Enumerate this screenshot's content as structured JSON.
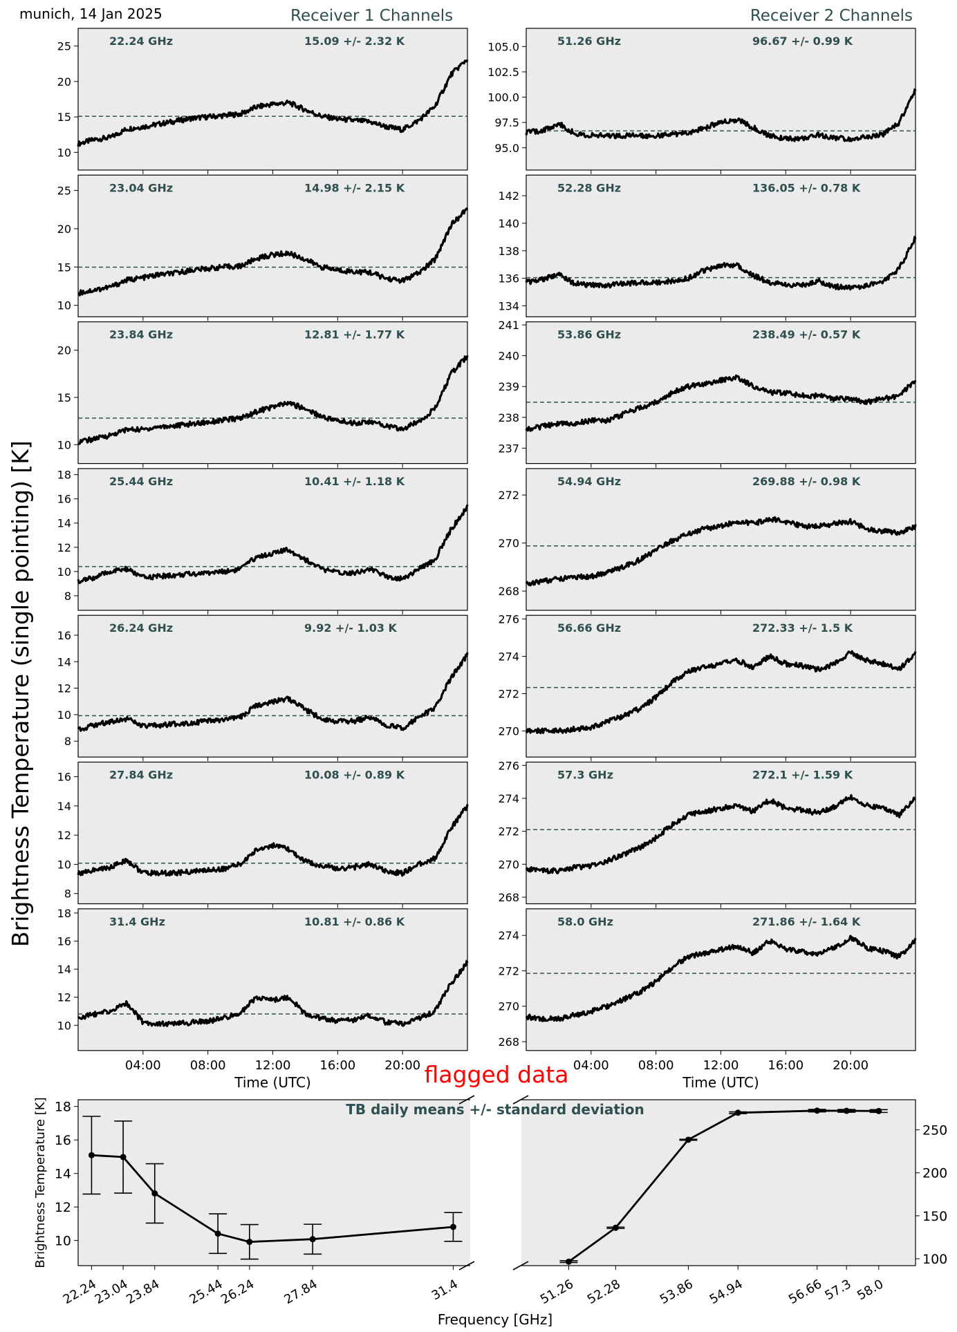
{
  "header": {
    "location_date": "munich, 14 Jan 2025",
    "receiver1_title": "Receiver 1 Channels",
    "receiver2_title": "Receiver 2 Channels",
    "y_axis_label": "Brightness Temperature (single pointing) [K]"
  },
  "colors": {
    "panel_bg": "#ebebeb",
    "trace": "#000000",
    "mean_line": "#2f4f4f",
    "label_text": "#2f4f4f",
    "flag_text": "#ff0000"
  },
  "time_axis": {
    "label": "Time (UTC)",
    "range_hours": [
      0,
      24
    ],
    "ticks": [
      4,
      8,
      12,
      16,
      20
    ],
    "tick_labels": [
      "04:00",
      "08:00",
      "12:00",
      "16:00",
      "20:00"
    ]
  },
  "chart_data": [
    {
      "type": "line",
      "receiver": 1,
      "channel": "22.24 GHz",
      "stat": "15.09 +/- 2.32 K",
      "mean": 15.09,
      "ylim": [
        7.5,
        27.5
      ],
      "yticks": [
        10,
        15,
        20,
        25
      ],
      "ytick_labels": [
        "10",
        "15",
        "20",
        "25"
      ],
      "x_hours": [
        0,
        1,
        2,
        3,
        4,
        5,
        6,
        7,
        8,
        9,
        10,
        11,
        12,
        13,
        14,
        15,
        16,
        17,
        18,
        19,
        20,
        21,
        22,
        23,
        24
      ],
      "y": [
        11.2,
        11.8,
        12.1,
        13.3,
        13.6,
        14.0,
        14.4,
        14.8,
        15.0,
        15.2,
        15.4,
        16.4,
        16.8,
        17.0,
        16.0,
        15.1,
        14.7,
        14.5,
        14.3,
        13.6,
        13.2,
        14.5,
        16.5,
        21.0,
        23.2
      ]
    },
    {
      "type": "line",
      "receiver": 1,
      "channel": "23.04 GHz",
      "stat": "14.98 +/- 2.15 K",
      "mean": 14.98,
      "ylim": [
        8.5,
        27
      ],
      "yticks": [
        10,
        15,
        20,
        25
      ],
      "ytick_labels": [
        "10",
        "15",
        "20",
        "25"
      ],
      "x_hours": [
        0,
        1,
        2,
        3,
        4,
        5,
        6,
        7,
        8,
        9,
        10,
        11,
        12,
        13,
        14,
        15,
        16,
        17,
        18,
        19,
        20,
        21,
        22,
        23,
        24
      ],
      "y": [
        11.6,
        12.0,
        12.4,
        13.3,
        13.6,
        14.0,
        14.2,
        14.6,
        14.8,
        15.0,
        15.1,
        16.1,
        16.6,
        16.8,
        16.0,
        15.0,
        14.6,
        14.4,
        14.3,
        13.5,
        13.2,
        14.2,
        16.0,
        20.5,
        22.6
      ]
    },
    {
      "type": "line",
      "receiver": 1,
      "channel": "23.84 GHz",
      "stat": "12.81 +/- 1.77 K",
      "mean": 12.81,
      "ylim": [
        8,
        23
      ],
      "yticks": [
        10,
        15,
        20
      ],
      "ytick_labels": [
        "10",
        "15",
        "20"
      ],
      "x_hours": [
        0,
        1,
        2,
        3,
        4,
        5,
        6,
        7,
        8,
        9,
        10,
        11,
        12,
        13,
        14,
        15,
        16,
        17,
        18,
        19,
        20,
        21,
        22,
        23,
        24
      ],
      "y": [
        10.3,
        10.6,
        11.0,
        11.6,
        11.6,
        11.9,
        12.0,
        12.2,
        12.4,
        12.6,
        12.8,
        13.5,
        14.0,
        14.4,
        13.8,
        13.0,
        12.5,
        12.3,
        12.4,
        12.0,
        11.6,
        12.5,
        13.8,
        17.5,
        19.4
      ]
    },
    {
      "type": "line",
      "receiver": 1,
      "channel": "25.44 GHz",
      "stat": "10.41 +/- 1.18 K",
      "mean": 10.41,
      "ylim": [
        6.8,
        18.5
      ],
      "yticks": [
        8,
        10,
        12,
        14,
        16,
        18
      ],
      "ytick_labels": [
        "8",
        "10",
        "12",
        "14",
        "16",
        "18"
      ],
      "x_hours": [
        0,
        1,
        2,
        3,
        4,
        5,
        6,
        7,
        8,
        9,
        10,
        11,
        12,
        13,
        14,
        15,
        16,
        17,
        18,
        19,
        20,
        21,
        22,
        23,
        24
      ],
      "y": [
        9.2,
        9.5,
        10.0,
        10.2,
        9.5,
        9.6,
        9.7,
        9.8,
        9.9,
        10.0,
        10.2,
        11.2,
        11.5,
        11.8,
        11.0,
        10.2,
        9.9,
        9.9,
        10.2,
        9.6,
        9.4,
        10.2,
        11.0,
        13.5,
        15.3
      ]
    },
    {
      "type": "line",
      "receiver": 1,
      "channel": "26.24 GHz",
      "stat": "9.92 +/- 1.03 K",
      "mean": 9.92,
      "ylim": [
        6.8,
        17.5
      ],
      "yticks": [
        8,
        10,
        12,
        14,
        16
      ],
      "ytick_labels": [
        "8",
        "10",
        "12",
        "14",
        "16"
      ],
      "x_hours": [
        0,
        1,
        2,
        3,
        4,
        5,
        6,
        7,
        8,
        9,
        10,
        11,
        12,
        13,
        14,
        15,
        16,
        17,
        18,
        19,
        20,
        21,
        22,
        23,
        24
      ],
      "y": [
        8.9,
        9.2,
        9.5,
        9.7,
        9.1,
        9.2,
        9.3,
        9.4,
        9.5,
        9.6,
        9.8,
        10.7,
        11.0,
        11.2,
        10.4,
        9.7,
        9.5,
        9.5,
        9.8,
        9.2,
        9.0,
        9.8,
        10.5,
        12.8,
        14.5
      ]
    },
    {
      "type": "line",
      "receiver": 1,
      "channel": "27.84 GHz",
      "stat": "10.08 +/- 0.89 K",
      "mean": 10.08,
      "ylim": [
        7.3,
        17
      ],
      "yticks": [
        8,
        10,
        12,
        14,
        16
      ],
      "ytick_labels": [
        "8",
        "10",
        "12",
        "14",
        "16"
      ],
      "x_hours": [
        0,
        1,
        2,
        3,
        4,
        5,
        6,
        7,
        8,
        9,
        10,
        11,
        12,
        13,
        14,
        15,
        16,
        17,
        18,
        19,
        20,
        21,
        22,
        23,
        24
      ],
      "y": [
        9.4,
        9.6,
        9.8,
        10.3,
        9.4,
        9.4,
        9.4,
        9.5,
        9.6,
        9.7,
        10.0,
        11.0,
        11.3,
        11.0,
        10.2,
        9.9,
        9.7,
        9.8,
        10.0,
        9.5,
        9.4,
        10.0,
        10.4,
        12.5,
        14.0
      ]
    },
    {
      "type": "line",
      "receiver": 1,
      "channel": "31.4 GHz",
      "stat": "10.81 +/- 0.86 K",
      "mean": 10.81,
      "ylim": [
        8.2,
        18.3
      ],
      "yticks": [
        10,
        12,
        14,
        16,
        18
      ],
      "ytick_labels": [
        "10",
        "12",
        "14",
        "16",
        "18"
      ],
      "x_hours": [
        0,
        1,
        2,
        3,
        4,
        5,
        6,
        7,
        8,
        9,
        10,
        11,
        12,
        13,
        14,
        15,
        16,
        17,
        18,
        19,
        20,
        21,
        22,
        23,
        24
      ],
      "y": [
        10.5,
        10.8,
        11.0,
        11.6,
        10.2,
        10.1,
        10.1,
        10.2,
        10.3,
        10.5,
        10.9,
        12.0,
        11.8,
        12.0,
        10.8,
        10.5,
        10.3,
        10.4,
        10.7,
        10.2,
        10.1,
        10.5,
        11.0,
        13.0,
        14.5
      ]
    },
    {
      "type": "line",
      "receiver": 2,
      "channel": "51.26 GHz",
      "stat": "96.67 +/- 0.99 K",
      "mean": 96.67,
      "ylim": [
        92.8,
        106.8
      ],
      "yticks": [
        95.0,
        97.5,
        100.0,
        102.5,
        105.0
      ],
      "ytick_labels": [
        "95.0",
        "97.5",
        "100.0",
        "102.5",
        "105.0"
      ],
      "x_hours": [
        0,
        1,
        2,
        3,
        4,
        5,
        6,
        7,
        8,
        9,
        10,
        11,
        12,
        13,
        14,
        15,
        16,
        17,
        18,
        19,
        20,
        21,
        22,
        23,
        24
      ],
      "y": [
        96.5,
        96.7,
        97.4,
        96.4,
        96.2,
        96.2,
        96.2,
        96.2,
        96.2,
        96.3,
        96.5,
        97.0,
        97.5,
        97.8,
        97.0,
        96.2,
        95.9,
        95.9,
        96.3,
        96.0,
        95.8,
        96.1,
        96.3,
        97.5,
        100.8
      ]
    },
    {
      "type": "line",
      "receiver": 2,
      "channel": "52.28 GHz",
      "stat": "136.05 +/- 0.78 K",
      "mean": 136.05,
      "ylim": [
        133.2,
        143.5
      ],
      "yticks": [
        134,
        136,
        138,
        140,
        142
      ],
      "ytick_labels": [
        "134",
        "136",
        "138",
        "140",
        "142"
      ],
      "x_hours": [
        0,
        1,
        2,
        3,
        4,
        5,
        6,
        7,
        8,
        9,
        10,
        11,
        12,
        13,
        14,
        15,
        16,
        17,
        18,
        19,
        20,
        21,
        22,
        23,
        24
      ],
      "y": [
        135.7,
        135.9,
        136.3,
        135.6,
        135.5,
        135.5,
        135.6,
        135.7,
        135.7,
        135.8,
        136.0,
        136.6,
        136.9,
        137.0,
        136.2,
        135.7,
        135.5,
        135.5,
        135.8,
        135.4,
        135.3,
        135.5,
        135.8,
        136.7,
        139.0
      ]
    },
    {
      "type": "line",
      "receiver": 2,
      "channel": "53.86 GHz",
      "stat": "238.49 +/- 0.57 K",
      "mean": 238.49,
      "ylim": [
        236.5,
        241.1
      ],
      "yticks": [
        237,
        238,
        239,
        240,
        241
      ],
      "ytick_labels": [
        "237",
        "238",
        "239",
        "240",
        "241"
      ],
      "x_hours": [
        0,
        1,
        2,
        3,
        4,
        5,
        6,
        7,
        8,
        9,
        10,
        11,
        12,
        13,
        14,
        15,
        16,
        17,
        18,
        19,
        20,
        21,
        22,
        23,
        24
      ],
      "y": [
        237.6,
        237.7,
        237.8,
        237.8,
        237.9,
        237.9,
        238.1,
        238.3,
        238.5,
        238.8,
        239.0,
        239.1,
        239.2,
        239.3,
        239.0,
        238.8,
        238.8,
        238.7,
        238.7,
        238.6,
        238.6,
        238.5,
        238.6,
        238.7,
        239.2
      ]
    },
    {
      "type": "line",
      "receiver": 2,
      "channel": "54.94 GHz",
      "stat": "269.88 +/- 0.98 K",
      "mean": 269.88,
      "ylim": [
        267.2,
        273.1
      ],
      "yticks": [
        268,
        270,
        272
      ],
      "ytick_labels": [
        "268",
        "270",
        "272"
      ],
      "x_hours": [
        0,
        1,
        2,
        3,
        4,
        5,
        6,
        7,
        8,
        9,
        10,
        11,
        12,
        13,
        14,
        15,
        16,
        17,
        18,
        19,
        20,
        21,
        22,
        23,
        24
      ],
      "y": [
        268.3,
        268.4,
        268.5,
        268.6,
        268.6,
        268.8,
        269.0,
        269.3,
        269.7,
        270.1,
        270.4,
        270.6,
        270.7,
        270.9,
        270.8,
        271.0,
        270.9,
        270.7,
        270.7,
        270.8,
        270.9,
        270.6,
        270.5,
        270.4,
        270.7
      ]
    },
    {
      "type": "line",
      "receiver": 2,
      "channel": "56.66 GHz",
      "stat": "272.33 +/- 1.5 K",
      "mean": 272.33,
      "ylim": [
        268.6,
        276.2
      ],
      "yticks": [
        270,
        272,
        274,
        276
      ],
      "ytick_labels": [
        "270",
        "272",
        "274",
        "276"
      ],
      "x_hours": [
        0,
        1,
        2,
        3,
        4,
        5,
        6,
        7,
        8,
        9,
        10,
        11,
        12,
        13,
        14,
        15,
        16,
        17,
        18,
        19,
        20,
        21,
        22,
        23,
        24
      ],
      "y": [
        270.0,
        270.0,
        270.0,
        270.1,
        270.2,
        270.5,
        270.8,
        271.2,
        271.8,
        272.6,
        273.2,
        273.4,
        273.6,
        273.8,
        273.4,
        274.0,
        273.6,
        273.5,
        273.3,
        273.6,
        274.2,
        273.8,
        273.6,
        273.3,
        274.2
      ]
    },
    {
      "type": "line",
      "receiver": 2,
      "channel": "57.3 GHz",
      "stat": "272.1 +/- 1.59 K",
      "mean": 272.1,
      "ylim": [
        267.6,
        276.2
      ],
      "yticks": [
        268,
        270,
        272,
        274,
        276
      ],
      "ytick_labels": [
        "268",
        "270",
        "272",
        "274",
        "276"
      ],
      "x_hours": [
        0,
        1,
        2,
        3,
        4,
        5,
        6,
        7,
        8,
        9,
        10,
        11,
        12,
        13,
        14,
        15,
        16,
        17,
        18,
        19,
        20,
        21,
        22,
        23,
        24
      ],
      "y": [
        269.7,
        269.6,
        269.6,
        269.8,
        269.9,
        270.2,
        270.6,
        271.0,
        271.6,
        272.4,
        273.0,
        273.2,
        273.4,
        273.6,
        273.2,
        273.9,
        273.4,
        273.3,
        273.1,
        273.5,
        274.1,
        273.6,
        273.4,
        273.0,
        274.0
      ]
    },
    {
      "type": "line",
      "receiver": 2,
      "channel": "58.0 GHz",
      "stat": "271.86 +/- 1.64 K",
      "mean": 271.86,
      "ylim": [
        267.5,
        275.5
      ],
      "yticks": [
        268,
        270,
        272,
        274
      ],
      "ytick_labels": [
        "268",
        "270",
        "272",
        "274"
      ],
      "x_hours": [
        0,
        1,
        2,
        3,
        4,
        5,
        6,
        7,
        8,
        9,
        10,
        11,
        12,
        13,
        14,
        15,
        16,
        17,
        18,
        19,
        20,
        21,
        22,
        23,
        24
      ],
      "y": [
        269.4,
        269.3,
        269.3,
        269.5,
        269.7,
        270.0,
        270.4,
        270.8,
        271.4,
        272.2,
        272.8,
        273.0,
        273.2,
        273.4,
        273.0,
        273.7,
        273.2,
        273.1,
        272.9,
        273.3,
        273.9,
        273.3,
        273.1,
        272.8,
        273.7
      ]
    },
    {
      "type": "line",
      "title": "TB daily means +/- standard deviation",
      "xlabel": "Frequency [GHz]",
      "ylabel": "Brightness Temperature [K]",
      "annotation": "flagged data",
      "categories": [
        "22.24",
        "23.04",
        "23.84",
        "25.44",
        "26.24",
        "27.84",
        "31.4",
        "51.26",
        "52.28",
        "53.86",
        "54.94",
        "56.66",
        "57.3",
        "58.0"
      ],
      "series": [
        {
          "axis": "left",
          "x": [
            22.24,
            23.04,
            23.84,
            25.44,
            26.24,
            27.84,
            31.4
          ],
          "mean": [
            15.09,
            14.98,
            12.81,
            10.41,
            9.92,
            10.08,
            10.81
          ],
          "std": [
            2.32,
            2.15,
            1.77,
            1.18,
            1.03,
            0.89,
            0.86
          ],
          "ylim": [
            8.5,
            18.4
          ],
          "yticks": [
            10,
            12,
            14,
            16,
            18
          ],
          "ytick_labels": [
            "10",
            "12",
            "14",
            "16",
            "18"
          ]
        },
        {
          "axis": "right",
          "x": [
            51.26,
            52.28,
            53.86,
            54.94,
            56.66,
            57.3,
            58.0
          ],
          "mean": [
            96.67,
            136.05,
            238.49,
            269.88,
            272.33,
            272.1,
            271.86
          ],
          "std": [
            0.99,
            0.78,
            0.57,
            0.98,
            1.5,
            1.59,
            1.64
          ],
          "ylim": [
            92,
            285
          ],
          "yticks": [
            100,
            150,
            200,
            250
          ],
          "ytick_labels": [
            "100",
            "150",
            "200",
            "250"
          ]
        }
      ]
    }
  ]
}
